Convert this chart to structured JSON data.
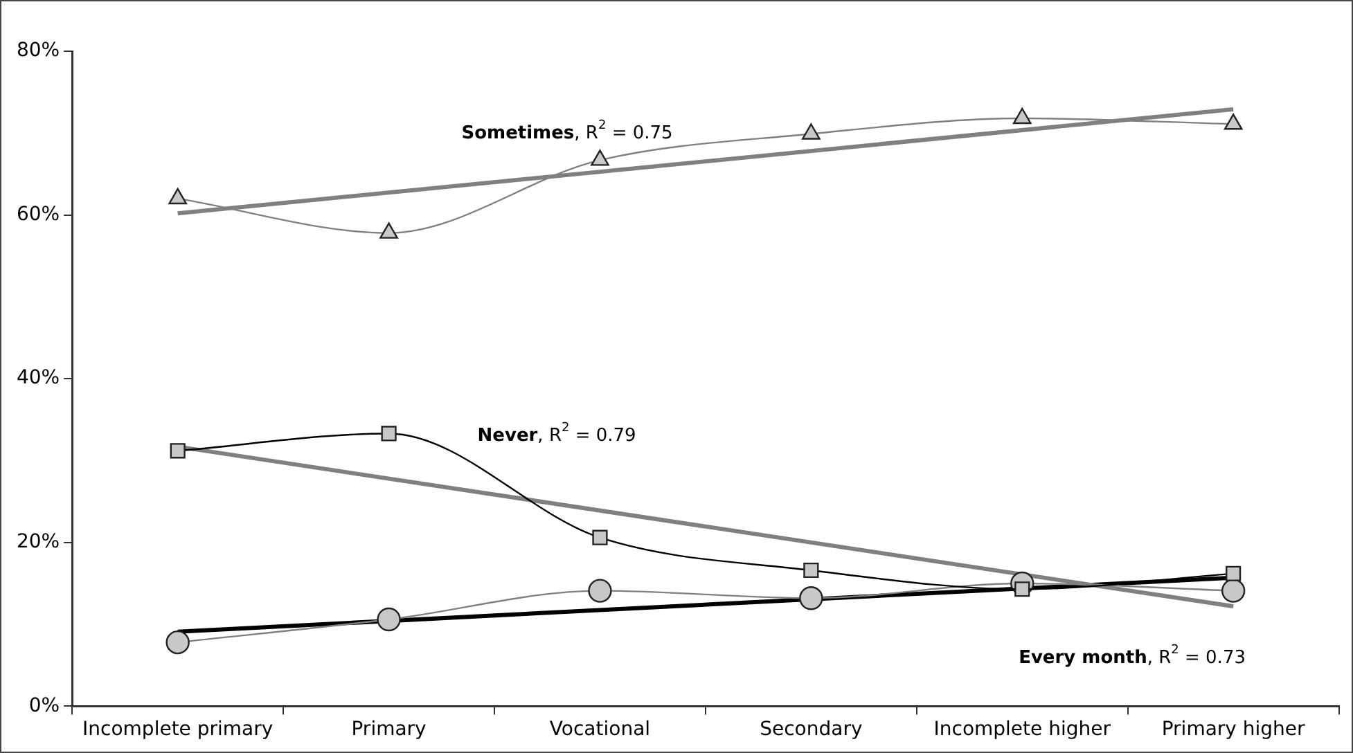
{
  "chart_data": {
    "type": "line",
    "categories": [
      "Incomplete primary",
      "Primary",
      "Vocational",
      "Secondary",
      "Incomplete higher",
      "Primary higher"
    ],
    "series": [
      {
        "name": "Sometimes",
        "color": "#808080",
        "marker": "triangle",
        "values": [
          62.0,
          57.8,
          66.7,
          69.9,
          71.8,
          71.1
        ]
      },
      {
        "name": "Never",
        "color": "#000000",
        "marker": "square",
        "values": [
          31.2,
          33.3,
          20.6,
          16.6,
          14.3,
          16.2
        ]
      },
      {
        "name": "Every month",
        "color": "#808080",
        "marker": "circle",
        "values": [
          7.8,
          10.6,
          14.1,
          13.2,
          15.0,
          14.1
        ]
      },
      {
        "type": "line",
        "color": "#808080",
        "marker": "none",
        "x": [
          "Incomplete primary",
          "Primary higher"
        ],
        "values": [
          60.2,
          72.9
        ]
      },
      {
        "type": "line",
        "color": "#808080",
        "marker": "none",
        "x": [
          "Incomplete primary",
          "Primary higher"
        ],
        "values": [
          31.7,
          12.2
        ]
      },
      {
        "type": "line",
        "color": "#000000",
        "marker": "none",
        "x": [
          "Incomplete primary",
          "Primary higher"
        ],
        "values": [
          9.1,
          15.7
        ]
      }
    ],
    "annotations": [
      ", R$^{2}$ = 0.75",
      ", R$^{2}$ = 0.79",
      ", R$^{2}$ = 0.73"
    ],
    "ylim": [
      0,
      80
    ],
    "yticks": [
      {
        "value": 0,
        "label": "0%"
      },
      {
        "value": 20,
        "label": "20%"
      },
      {
        "value": 40,
        "label": "40%"
      },
      {
        "value": 60,
        "label": "60%"
      },
      {
        "value": 80,
        "label": "80%"
      }
    ],
    "grid": false,
    "legend": false,
    "line_style": "solid"
  }
}
